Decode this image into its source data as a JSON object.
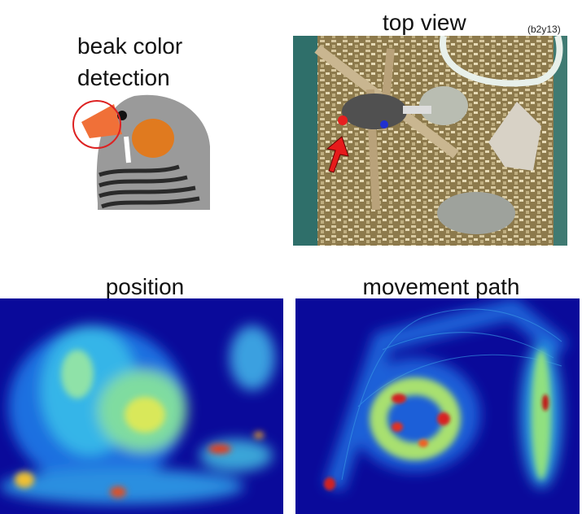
{
  "figure": {
    "beak_panel": {
      "title_lines": [
        "beak color",
        "detection"
      ]
    },
    "top_view_panel": {
      "title": "top view",
      "bird_id": "(b2y13)"
    },
    "position_panel": {
      "title": "position"
    },
    "movement_panel": {
      "title": "movement path"
    }
  }
}
